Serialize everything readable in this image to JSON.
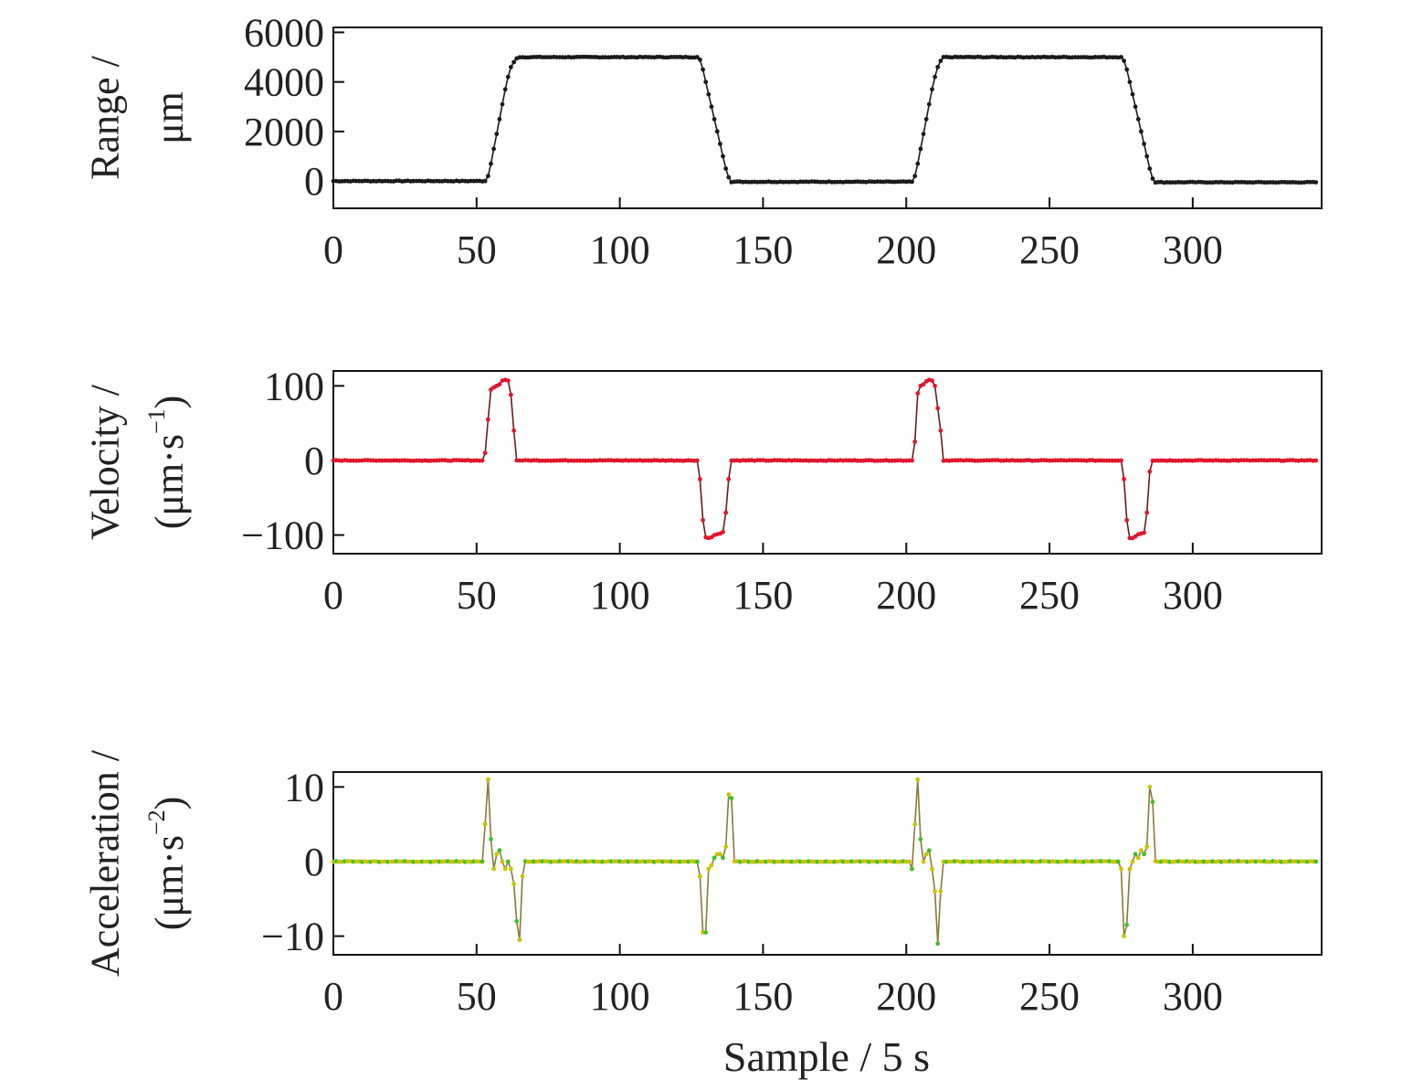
{
  "colors": {
    "range": "#1a1a1a",
    "velocity_marker": "#e0162b",
    "velocity_line": "#6e1a1a",
    "accel_marker_a": "#c8c400",
    "accel_marker_b": "#3fbf2a",
    "accel_line": "#8a7a3a",
    "axis": "#111111"
  },
  "figure": {
    "xlabel": "Sample / 5 s"
  },
  "chart_data": [
    {
      "type": "line",
      "name": "range-panel",
      "ylabel_line1": "Range /",
      "ylabel_line2": "μm",
      "ylabel_sup": "",
      "ylabel_tail": "",
      "xlim": [
        0,
        345
      ],
      "ylim": [
        -1100,
        6200
      ],
      "xticks": [
        0,
        50,
        100,
        150,
        200,
        250,
        300
      ],
      "xtick_labels": [
        "0",
        "50",
        "100",
        "150",
        "200",
        "250",
        "300"
      ],
      "yticks": [
        0,
        2000,
        4000,
        6000
      ],
      "ytick_labels": [
        "0",
        "2000",
        "4000",
        "6000"
      ],
      "marker_color": "#1a1a1a",
      "line_color": "#1a1a1a",
      "keypoints": [
        [
          0,
          0
        ],
        [
          53,
          0
        ],
        [
          54,
          200
        ],
        [
          55,
          700
        ],
        [
          56,
          1300
        ],
        [
          57,
          1900
        ],
        [
          58,
          2500
        ],
        [
          59,
          3100
        ],
        [
          60,
          3700
        ],
        [
          61,
          4200
        ],
        [
          62,
          4600
        ],
        [
          63,
          4800
        ],
        [
          64,
          4950
        ],
        [
          65,
          5000
        ],
        [
          127,
          5000
        ],
        [
          128,
          4900
        ],
        [
          129,
          4500
        ],
        [
          130,
          4000
        ],
        [
          131,
          3500
        ],
        [
          132,
          3000
        ],
        [
          133,
          2500
        ],
        [
          134,
          2000
        ],
        [
          135,
          1500
        ],
        [
          136,
          1000
        ],
        [
          137,
          500
        ],
        [
          138,
          150
        ],
        [
          139,
          -30
        ],
        [
          202,
          -30
        ],
        [
          203,
          200
        ],
        [
          204,
          700
        ],
        [
          205,
          1300
        ],
        [
          206,
          1900
        ],
        [
          207,
          2500
        ],
        [
          208,
          3100
        ],
        [
          209,
          3700
        ],
        [
          210,
          4200
        ],
        [
          211,
          4600
        ],
        [
          212,
          4850
        ],
        [
          213,
          5000
        ],
        [
          275,
          5000
        ],
        [
          276,
          4850
        ],
        [
          277,
          4500
        ],
        [
          278,
          4000
        ],
        [
          279,
          3500
        ],
        [
          280,
          3000
        ],
        [
          281,
          2500
        ],
        [
          282,
          2000
        ],
        [
          283,
          1500
        ],
        [
          284,
          1000
        ],
        [
          285,
          500
        ],
        [
          286,
          100
        ],
        [
          287,
          -50
        ],
        [
          343,
          -50
        ]
      ]
    },
    {
      "type": "line",
      "name": "velocity-panel",
      "ylabel_line1": "Velocity /",
      "ylabel_line2": "(μm·s",
      "ylabel_sup": "−1",
      "ylabel_tail": ")",
      "xlim": [
        0,
        345
      ],
      "ylim": [
        -125,
        120
      ],
      "xticks": [
        0,
        50,
        100,
        150,
        200,
        250,
        300
      ],
      "xtick_labels": [
        "0",
        "50",
        "100",
        "150",
        "200",
        "250",
        "300"
      ],
      "yticks": [
        -100,
        0,
        100
      ],
      "ytick_labels": [
        "−100",
        "0",
        "100"
      ],
      "marker_color": "#e0162b",
      "line_color": "#6e1a1a",
      "keypoints": [
        [
          0,
          0
        ],
        [
          52,
          0
        ],
        [
          53,
          10
        ],
        [
          54,
          55
        ],
        [
          55,
          95
        ],
        [
          56,
          98
        ],
        [
          57,
          100
        ],
        [
          58,
          102
        ],
        [
          59,
          107
        ],
        [
          60,
          108
        ],
        [
          61,
          107
        ],
        [
          62,
          88
        ],
        [
          63,
          40
        ],
        [
          64,
          0
        ],
        [
          127,
          0
        ],
        [
          128,
          -25
        ],
        [
          129,
          -80
        ],
        [
          130,
          -103
        ],
        [
          131,
          -104
        ],
        [
          132,
          -103
        ],
        [
          133,
          -100
        ],
        [
          134,
          -99
        ],
        [
          135,
          -98
        ],
        [
          136,
          -96
        ],
        [
          137,
          -70
        ],
        [
          138,
          -25
        ],
        [
          139,
          0
        ],
        [
          202,
          0
        ],
        [
          203,
          25
        ],
        [
          204,
          90
        ],
        [
          205,
          100
        ],
        [
          206,
          102
        ],
        [
          207,
          106
        ],
        [
          208,
          108
        ],
        [
          209,
          107
        ],
        [
          210,
          100
        ],
        [
          211,
          70
        ],
        [
          212,
          40
        ],
        [
          213,
          0
        ],
        [
          275,
          0
        ],
        [
          276,
          -25
        ],
        [
          277,
          -80
        ],
        [
          278,
          -104
        ],
        [
          279,
          -104
        ],
        [
          280,
          -102
        ],
        [
          281,
          -99
        ],
        [
          282,
          -98
        ],
        [
          283,
          -97
        ],
        [
          284,
          -70
        ],
        [
          285,
          -15
        ],
        [
          286,
          0
        ],
        [
          343,
          0
        ]
      ]
    },
    {
      "type": "line",
      "name": "acceleration-panel",
      "ylabel_line1": "Acceleration /",
      "ylabel_line2": "(μm·s",
      "ylabel_sup": "−2",
      "ylabel_tail": ")",
      "xlim": [
        0,
        345
      ],
      "ylim": [
        -12.5,
        12
      ],
      "xticks": [
        0,
        50,
        100,
        150,
        200,
        250,
        300
      ],
      "xtick_labels": [
        "0",
        "50",
        "100",
        "150",
        "200",
        "250",
        "300"
      ],
      "yticks": [
        -10,
        0,
        10
      ],
      "ytick_labels": [
        "−10",
        "0",
        "10"
      ],
      "marker_color": "#c8c400",
      "marker_color_alt": "#3fbf2a",
      "line_color": "#8a7a3a",
      "keypoints": [
        [
          0,
          0
        ],
        [
          52,
          0
        ],
        [
          53,
          5
        ],
        [
          54,
          11
        ],
        [
          55,
          3
        ],
        [
          56,
          -1
        ],
        [
          57,
          1
        ],
        [
          58,
          1.5
        ],
        [
          59,
          0
        ],
        [
          60,
          -1
        ],
        [
          61,
          0
        ],
        [
          62,
          -1
        ],
        [
          63,
          -3
        ],
        [
          64,
          -8
        ],
        [
          65,
          -10.5
        ],
        [
          66,
          -2
        ],
        [
          67,
          0
        ],
        [
          126,
          0
        ],
        [
          127,
          0
        ],
        [
          128,
          -2
        ],
        [
          129,
          -9.5
        ],
        [
          130,
          -9.5
        ],
        [
          131,
          -1
        ],
        [
          132,
          -0.5
        ],
        [
          133,
          0.5
        ],
        [
          134,
          1
        ],
        [
          135,
          1
        ],
        [
          136,
          0.5
        ],
        [
          137,
          2
        ],
        [
          138,
          9
        ],
        [
          139,
          8.5
        ],
        [
          140,
          0
        ],
        [
          201,
          0
        ],
        [
          202,
          -1
        ],
        [
          203,
          5
        ],
        [
          204,
          11
        ],
        [
          205,
          3
        ],
        [
          206,
          0
        ],
        [
          207,
          1
        ],
        [
          208,
          1.5
        ],
        [
          209,
          -1
        ],
        [
          210,
          -4
        ],
        [
          211,
          -11
        ],
        [
          212,
          -4
        ],
        [
          213,
          0
        ],
        [
          274,
          0
        ],
        [
          275,
          -1
        ],
        [
          276,
          -10
        ],
        [
          277,
          -8.5
        ],
        [
          278,
          -1
        ],
        [
          279,
          0
        ],
        [
          280,
          1
        ],
        [
          281,
          0.5
        ],
        [
          282,
          1.5
        ],
        [
          283,
          1
        ],
        [
          284,
          2
        ],
        [
          285,
          10
        ],
        [
          286,
          8
        ],
        [
          287,
          0
        ],
        [
          343,
          0
        ]
      ]
    }
  ]
}
